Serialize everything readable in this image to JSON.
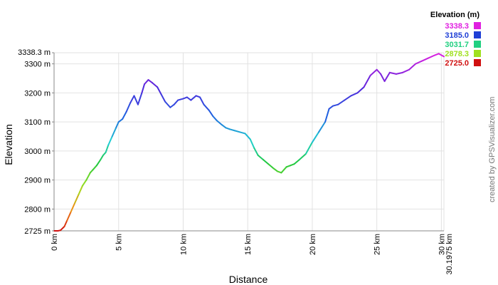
{
  "chart_data": {
    "type": "line",
    "title": "",
    "xlabel": "Distance",
    "ylabel": "Elevation",
    "x_unit": "km",
    "y_unit": "m",
    "xlim": [
      0,
      30.1975
    ],
    "ylim": [
      2725.0,
      3338.3
    ],
    "grid": true,
    "x_ticks": [
      {
        "value": 0,
        "label": "0 km"
      },
      {
        "value": 5,
        "label": "5 km"
      },
      {
        "value": 10,
        "label": "10 km"
      },
      {
        "value": 15,
        "label": "15 km"
      },
      {
        "value": 20,
        "label": "20 km"
      },
      {
        "value": 25,
        "label": "25 km"
      },
      {
        "value": 30,
        "label": "30 km"
      },
      {
        "value": 30.1975,
        "label": "30.1975 km"
      }
    ],
    "y_ticks": [
      {
        "value": 2725.0,
        "label": "2725 m"
      },
      {
        "value": 2800,
        "label": "2800 m"
      },
      {
        "value": 2900,
        "label": "2900 m"
      },
      {
        "value": 3000,
        "label": "3000 m"
      },
      {
        "value": 3100,
        "label": "3100 m"
      },
      {
        "value": 3200,
        "label": "3200 m"
      },
      {
        "value": 3300,
        "label": "3300 m"
      },
      {
        "value": 3338.3,
        "label": "3338.3 m"
      }
    ],
    "legend": {
      "title": "Elevation (m)",
      "placement": "top-right",
      "entries": [
        {
          "label": "3338.3",
          "color": "#e020e0"
        },
        {
          "label": "3185.0",
          "color": "#1f3fd6"
        },
        {
          "label": "3031.7",
          "color": "#20d080"
        },
        {
          "label": "2878.3",
          "color": "#a0e020"
        },
        {
          "label": "2725.0",
          "color": "#d01010"
        }
      ]
    },
    "series": [
      {
        "x": [
          0,
          0.3,
          0.5,
          0.8,
          1.0,
          1.3,
          1.6,
          1.9,
          2.2,
          2.5,
          2.8,
          3.0,
          3.3,
          3.6,
          3.8,
          4.0,
          4.2,
          4.5,
          4.8,
          5.0,
          5.3,
          5.6,
          5.9,
          6.2,
          6.5,
          6.8,
          7.0,
          7.3,
          7.6,
          8.0,
          8.3,
          8.6,
          9.0,
          9.3,
          9.6,
          10.0,
          10.3,
          10.6,
          11.0,
          11.3,
          11.6,
          12.0,
          12.3,
          12.6,
          13.0,
          13.3,
          13.6,
          14.0,
          14.4,
          14.8,
          15.2,
          15.5,
          15.8,
          16.2,
          16.6,
          17.0,
          17.3,
          17.6,
          18.0,
          18.3,
          18.6,
          19.0,
          19.5,
          20.0,
          20.5,
          21.0,
          21.3,
          21.6,
          22.0,
          22.5,
          23.0,
          23.5,
          24.0,
          24.5,
          25.0,
          25.3,
          25.6,
          26.0,
          26.5,
          27.0,
          27.5,
          28.0,
          28.5,
          29.0,
          29.5,
          29.8,
          30.1975
        ],
        "y": [
          2725,
          2725,
          2727,
          2740,
          2760,
          2790,
          2820,
          2850,
          2880,
          2900,
          2925,
          2935,
          2950,
          2970,
          2985,
          2995,
          3020,
          3050,
          3080,
          3100,
          3110,
          3135,
          3165,
          3190,
          3160,
          3200,
          3230,
          3245,
          3235,
          3220,
          3195,
          3170,
          3150,
          3160,
          3175,
          3180,
          3185,
          3175,
          3190,
          3185,
          3160,
          3140,
          3120,
          3105,
          3090,
          3080,
          3075,
          3070,
          3065,
          3060,
          3040,
          3010,
          2985,
          2970,
          2955,
          2940,
          2930,
          2925,
          2945,
          2950,
          2955,
          2970,
          2990,
          3030,
          3065,
          3100,
          3145,
          3155,
          3160,
          3175,
          3190,
          3200,
          3220,
          3260,
          3280,
          3265,
          3240,
          3270,
          3265,
          3270,
          3280,
          3300,
          3310,
          3320,
          3330,
          3335,
          3325
        ]
      }
    ]
  },
  "credit": "created by GPSVisualizer.com"
}
